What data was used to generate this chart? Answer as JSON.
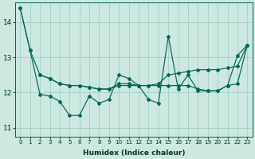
{
  "xlabel": "Humidex (Indice chaleur)",
  "background_color": "#cce8e0",
  "grid_color": "#99ccbb",
  "line_color": "#006655",
  "xlim": [
    -0.5,
    23.5
  ],
  "ylim": [
    10.75,
    14.55
  ],
  "yticks": [
    11,
    12,
    13,
    14
  ],
  "xticks": [
    0,
    1,
    2,
    3,
    4,
    5,
    6,
    7,
    8,
    9,
    10,
    11,
    12,
    13,
    14,
    15,
    16,
    17,
    18,
    19,
    20,
    21,
    22,
    23
  ],
  "series_jagged": [
    14.4,
    13.2,
    11.95,
    11.9,
    11.75,
    11.35,
    11.35,
    11.9,
    11.7,
    11.8,
    12.5,
    12.4,
    12.2,
    11.8,
    11.7,
    13.6,
    12.1,
    12.5,
    12.05,
    12.05,
    12.05,
    12.2,
    13.05,
    13.35
  ],
  "series_smooth": [
    14.4,
    13.2,
    12.5,
    12.4,
    12.25,
    12.2,
    12.2,
    12.15,
    12.1,
    12.1,
    12.2,
    12.2,
    12.2,
    12.2,
    12.25,
    12.5,
    12.55,
    12.6,
    12.65,
    12.65,
    12.65,
    12.7,
    12.75,
    13.35
  ],
  "series_flat": [
    null,
    null,
    12.5,
    12.4,
    12.25,
    12.2,
    12.2,
    12.15,
    12.1,
    12.1,
    12.25,
    12.25,
    12.2,
    12.2,
    12.2,
    12.2,
    12.2,
    12.2,
    12.1,
    12.05,
    12.05,
    12.2,
    12.25,
    13.35
  ]
}
